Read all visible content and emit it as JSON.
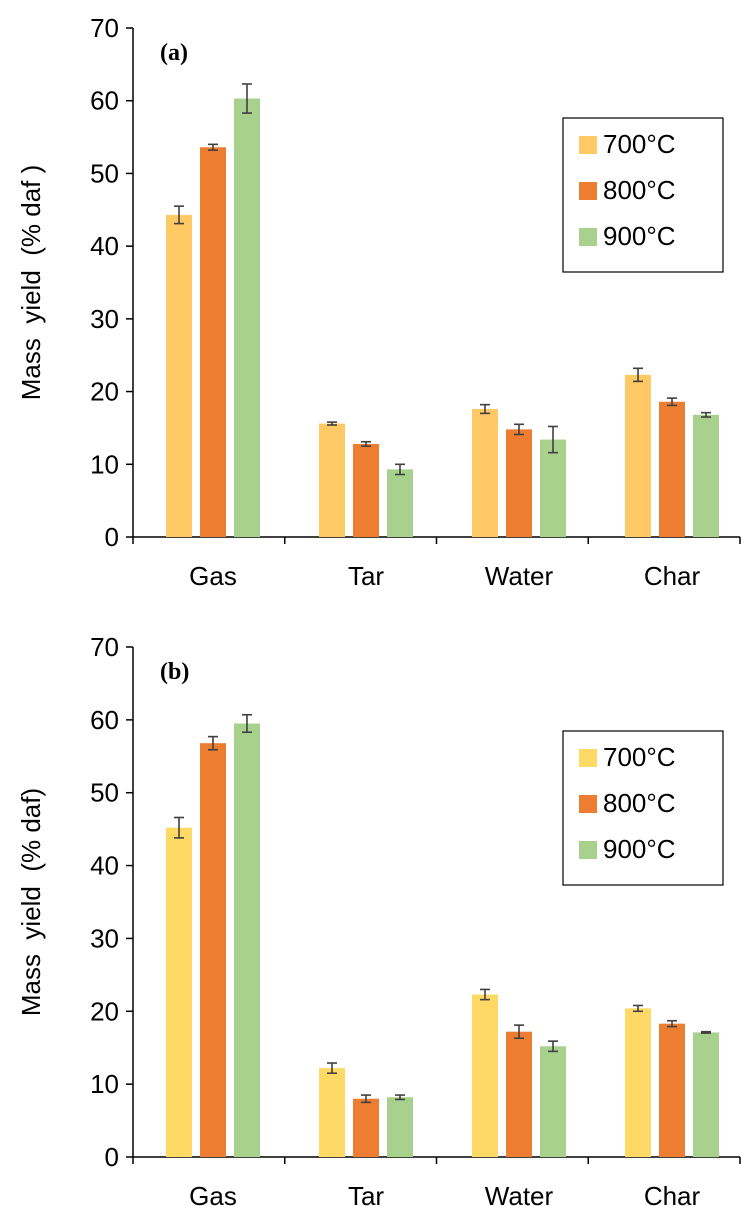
{
  "chart_data": [
    {
      "type": "bar",
      "panel_label": "(a)",
      "categories": [
        "Gas",
        "Tar",
        "Water",
        "Char"
      ],
      "ylabel": "Mass  yield  (% daf )",
      "ylim": [
        0,
        70
      ],
      "yticks": [
        "0",
        "10",
        "20",
        "30",
        "40",
        "50",
        "60",
        "70"
      ],
      "legend_position": "top-right",
      "series": [
        {
          "name": "700°C",
          "color": "#FFC966",
          "values": [
            44.3,
            15.6,
            17.6,
            22.3
          ],
          "errors": [
            1.2,
            0.2,
            0.6,
            0.9
          ]
        },
        {
          "name": "800°C",
          "color": "#ED7D31",
          "values": [
            53.6,
            12.8,
            14.8,
            18.6
          ],
          "errors": [
            0.4,
            0.3,
            0.7,
            0.5
          ]
        },
        {
          "name": "900°C",
          "color": "#A9D18E",
          "values": [
            60.3,
            9.3,
            13.4,
            16.8
          ],
          "errors": [
            2.0,
            0.7,
            1.8,
            0.3
          ]
        }
      ]
    },
    {
      "type": "bar",
      "panel_label": "(b)",
      "categories": [
        "Gas",
        "Tar",
        "Water",
        "Char"
      ],
      "ylabel": "Mass  yield  (% daf)",
      "ylim": [
        0,
        70
      ],
      "yticks": [
        "0",
        "10",
        "20",
        "30",
        "40",
        "50",
        "60",
        "70"
      ],
      "legend_position": "top-right",
      "series": [
        {
          "name": "700°C",
          "color": "#FFD966",
          "values": [
            45.2,
            12.2,
            22.3,
            20.4
          ],
          "errors": [
            1.4,
            0.7,
            0.7,
            0.4
          ]
        },
        {
          "name": "800°C",
          "color": "#ED7D31",
          "values": [
            56.8,
            8.0,
            17.2,
            18.3
          ],
          "errors": [
            0.9,
            0.5,
            0.9,
            0.4
          ]
        },
        {
          "name": "900°C",
          "color": "#A9D18E",
          "values": [
            59.5,
            8.2,
            15.2,
            17.1
          ],
          "errors": [
            1.2,
            0.3,
            0.7,
            0.1
          ]
        }
      ]
    }
  ]
}
